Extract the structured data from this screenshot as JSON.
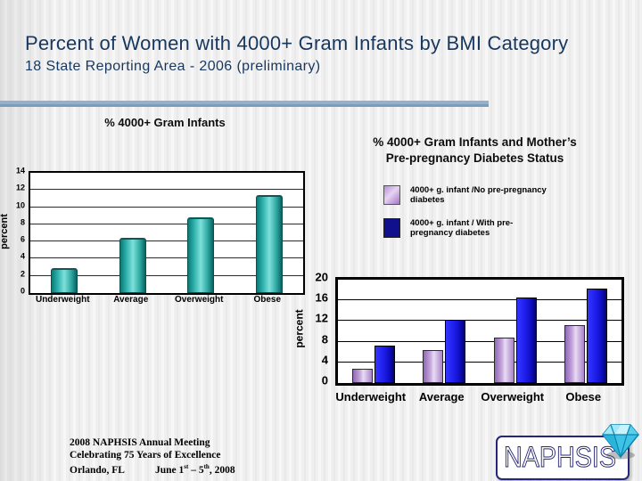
{
  "slide": {
    "title": "Percent of Women with 4000+ Gram Infants by BMI Category",
    "subtitle": "18 State Reporting Area - 2006 (preliminary)"
  },
  "colors": {
    "title_navy": "#17375e",
    "divider_blue": "#8aa9c8",
    "teal_bar": "#2fb3ae",
    "lavender_bar": "#c4a0dc",
    "blue_bar": "#1717dd",
    "legend_navy": "#10108c",
    "diamond_cyan": "#3ec3e6",
    "logo_navy": "#26267a"
  },
  "chart_data": [
    {
      "type": "bar",
      "title": "% 4000+ Gram Infants",
      "categories": [
        "Underweight",
        "Average",
        "Overweight",
        "Obese"
      ],
      "values": [
        2.9,
        6.4,
        8.8,
        11.4
      ],
      "xlabel": "",
      "ylabel": "percent",
      "ylim": [
        0,
        14
      ],
      "yticks": [
        0,
        2,
        4,
        6,
        8,
        10,
        12,
        14
      ],
      "grid": true,
      "bar_color": "#2fb3ae",
      "legend_position": "none"
    },
    {
      "type": "bar",
      "title": "% 4000+ Gram Infants and Mother’s Pre-pregnancy Diabetes Status",
      "title_lines": [
        "% 4000+ Gram Infants and Mother’s",
        "Pre-pregnancy Diabetes Status"
      ],
      "categories": [
        "Underweight",
        "Average",
        "Overweight",
        "Obese"
      ],
      "series": [
        {
          "name": "4000+ g. infant /No pre-pregnancy diabetes",
          "color": "#c4a0dc",
          "values": [
            2.8,
            6.3,
            8.8,
            11.2
          ]
        },
        {
          "name": "4000+ g. infant / With pre-pregnancy diabetes",
          "color": "#1717dd",
          "values": [
            7.2,
            12.2,
            16.5,
            18.2
          ]
        }
      ],
      "xlabel": "",
      "ylabel": "percent",
      "ylim": [
        0,
        20
      ],
      "yticks": [
        0,
        4,
        8,
        12,
        16,
        20
      ],
      "grid": true,
      "legend_position": "top-right"
    }
  ],
  "footer": {
    "line1": "2008 NAPHSIS Annual Meeting",
    "line2": "Celebrating 75 Years of Excellence",
    "line3_city": "Orlando, FL",
    "line3_date_prefix": "June 1",
    "line3_sup1": "st",
    "line3_mid": " – 5",
    "line3_sup2": "th",
    "line3_suffix": ", 2008"
  },
  "logo": {
    "text": "NAPHSIS"
  }
}
